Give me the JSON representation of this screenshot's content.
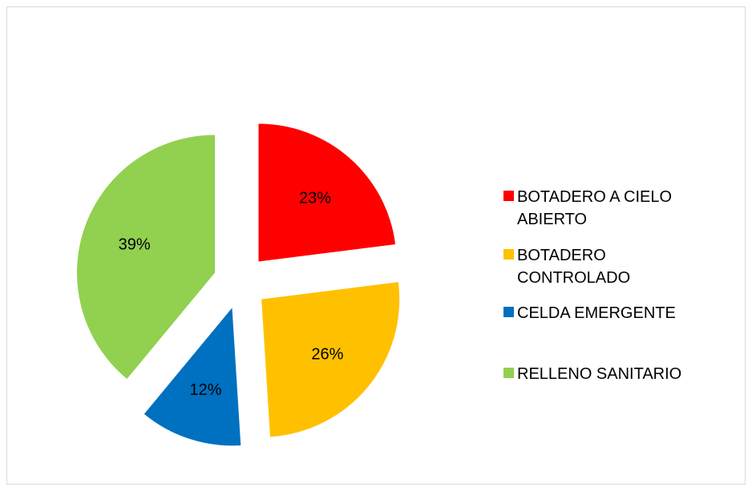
{
  "chart_data": {
    "type": "pie",
    "categories": [
      "BOTADERO A CIELO ABIERTO",
      "BOTADERO CONTROLADO",
      "CELDA EMERGENTE",
      "RELLENO SANITARIO"
    ],
    "values": [
      23,
      26,
      12,
      39
    ],
    "value_labels": [
      "23%",
      "26%",
      "12%",
      "39%"
    ],
    "colors": [
      "#ff0000",
      "#ffc000",
      "#0070c0",
      "#92d050"
    ],
    "exploded": true,
    "legend": "right"
  }
}
